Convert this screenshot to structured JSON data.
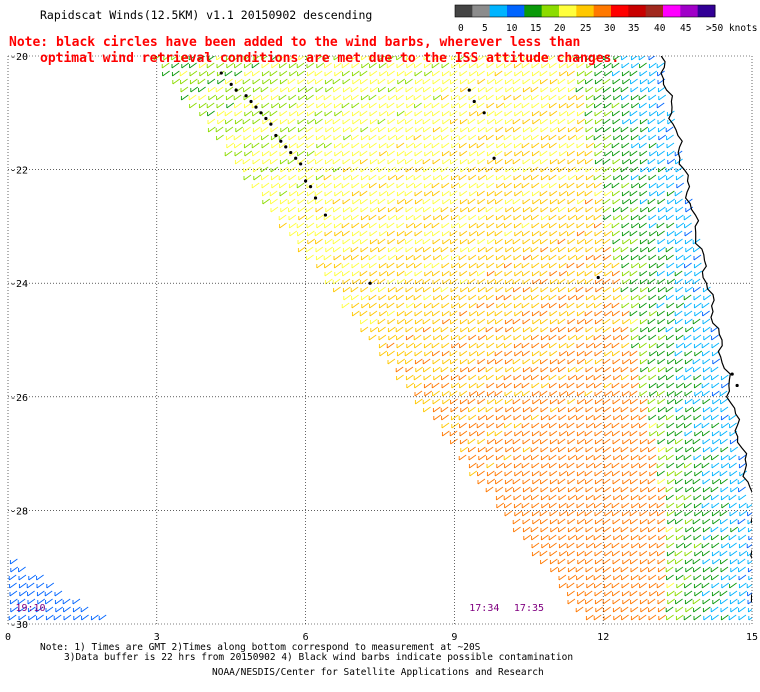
{
  "header": {
    "title": "Rapidscat Winds(12.5KM) v1.1 20150902 descending",
    "note_line1": "Note: black circles have been added to the wind barbs, wherever less than",
    "note_line2": "optimal wind retrieval conditions are met due to the ISS attitude changes.",
    "note_color": "#ff0000"
  },
  "colorbar": {
    "labels": [
      "0",
      "5",
      "10",
      "15",
      "20",
      "25",
      "30",
      "35",
      "40",
      "45",
      ">50 knots"
    ],
    "colors": [
      "#444444",
      "#8c8c8c",
      "#00b4ff",
      "#0064ff",
      "#0a9a0a",
      "#8cdc00",
      "#ffff3c",
      "#ffc800",
      "#ff7800",
      "#ff0000",
      "#c80000",
      "#a0281e",
      "#ff00ff",
      "#a000c8",
      "#320096"
    ]
  },
  "chart_data": {
    "type": "scatter",
    "title": "Rapidscat Winds(12.5KM) v1.1 20150902 descending",
    "xlabel": "",
    "ylabel": "",
    "x_ticks": [
      "0",
      "3",
      "6",
      "9",
      "12",
      "15"
    ],
    "y_ticks": [
      "-20",
      "-22",
      "-24",
      "-26",
      "-28",
      "-30"
    ],
    "xlim": [
      0,
      15
    ],
    "ylim": [
      -30,
      -20
    ],
    "grid": true,
    "time_labels": [
      {
        "text": "19:10",
        "x": 0.15,
        "y": -29.7
      },
      {
        "text": "17:34",
        "x": 9.3,
        "y": -29.7
      },
      {
        "text": "17:35",
        "x": 10.2,
        "y": -29.7
      }
    ],
    "regions": [
      {
        "name": "main-swath",
        "polygon": [
          [
            2.8,
            -20
          ],
          [
            15,
            -20
          ],
          [
            15,
            -30
          ],
          [
            11.6,
            -30
          ]
        ]
      },
      {
        "name": "corner-swath",
        "polygon": [
          [
            0,
            -28.9
          ],
          [
            2.0,
            -30
          ],
          [
            0,
            -30
          ]
        ]
      }
    ],
    "wind_speed_gradient_knots": {
      "northwest": 18,
      "southeast": 29,
      "coastal_band": 12
    },
    "contamination_markers": [
      [
        4.3,
        -20.3
      ],
      [
        4.5,
        -20.5
      ],
      [
        4.6,
        -20.6
      ],
      [
        4.8,
        -20.7
      ],
      [
        4.9,
        -20.8
      ],
      [
        5.0,
        -20.9
      ],
      [
        5.1,
        -21.0
      ],
      [
        5.2,
        -21.1
      ],
      [
        5.3,
        -21.2
      ],
      [
        5.4,
        -21.4
      ],
      [
        5.5,
        -21.5
      ],
      [
        5.6,
        -21.6
      ],
      [
        5.7,
        -21.7
      ],
      [
        5.8,
        -21.8
      ],
      [
        5.9,
        -21.9
      ],
      [
        6.0,
        -22.2
      ],
      [
        6.1,
        -22.3
      ],
      [
        6.2,
        -22.5
      ],
      [
        6.4,
        -22.8
      ],
      [
        7.3,
        -24.0
      ],
      [
        9.3,
        -20.6
      ],
      [
        9.4,
        -20.8
      ],
      [
        9.6,
        -21.0
      ],
      [
        9.8,
        -21.8
      ],
      [
        11.9,
        -23.9
      ],
      [
        14.6,
        -25.6
      ],
      [
        14.7,
        -25.8
      ]
    ]
  },
  "footer": {
    "notes_line1": "Note: 1) Times are GMT 2)Times along bottom correspond to measurement at ~20S",
    "notes_line2": "3)Data buffer is 22 hrs from 20150902 4) Black wind barbs indicate possible contamination",
    "credit": "NOAA/NESDIS/Center for Satellite Applications and Research"
  }
}
